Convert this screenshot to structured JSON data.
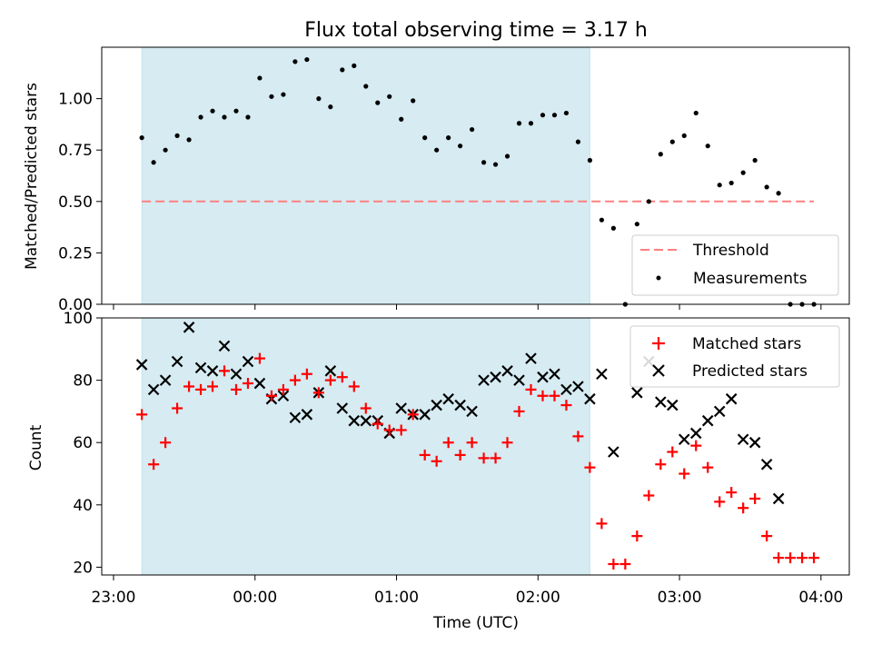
{
  "chart_data": [
    {
      "type": "scatter",
      "title": "Flux total observing time = 3.17 h",
      "ylabel": "Matched/Predicted stars",
      "xlim": [
        "22:55",
        "04:12"
      ],
      "ylim": [
        0,
        1.25
      ],
      "yticks": [
        0.0,
        0.25,
        0.5,
        0.75,
        1.0
      ],
      "ytick_labels": [
        "0.00",
        "0.25",
        "0.50",
        "0.75",
        "1.00"
      ],
      "shaded_interval": [
        "23:12",
        "02:22"
      ],
      "legend": {
        "position": "lower-right",
        "items": [
          "Threshold",
          "Measurements"
        ]
      },
      "series": [
        {
          "name": "Threshold",
          "kind": "dashed-line",
          "color": "#ff7f7f",
          "x": [
            "23:12",
            "03:57"
          ],
          "y": [
            0.5,
            0.5
          ]
        },
        {
          "name": "Measurements",
          "kind": "points",
          "color": "#000000",
          "x": [
            "23:12",
            "23:17",
            "23:22",
            "23:27",
            "23:32",
            "23:37",
            "23:42",
            "23:47",
            "23:52",
            "23:57",
            "00:02",
            "00:07",
            "00:12",
            "00:17",
            "00:22",
            "00:27",
            "00:32",
            "00:37",
            "00:42",
            "00:47",
            "00:52",
            "00:57",
            "01:02",
            "01:07",
            "01:12",
            "01:17",
            "01:22",
            "01:27",
            "01:32",
            "01:37",
            "01:42",
            "01:47",
            "01:52",
            "01:57",
            "02:02",
            "02:07",
            "02:12",
            "02:17",
            "02:22",
            "02:27",
            "02:32",
            "02:37",
            "02:42",
            "02:47",
            "02:52",
            "02:57",
            "03:02",
            "03:07",
            "03:12",
            "03:17",
            "03:22",
            "03:27",
            "03:32",
            "03:37",
            "03:42",
            "03:47",
            "03:52",
            "03:57"
          ],
          "y": [
            0.81,
            0.69,
            0.75,
            0.82,
            0.8,
            0.91,
            0.94,
            0.91,
            0.94,
            0.91,
            1.1,
            1.01,
            1.02,
            1.18,
            1.19,
            1.0,
            0.96,
            1.14,
            1.16,
            1.06,
            0.98,
            1.01,
            0.9,
            0.99,
            0.81,
            0.75,
            0.81,
            0.77,
            0.85,
            0.69,
            0.68,
            0.72,
            0.88,
            0.88,
            0.92,
            0.92,
            0.93,
            0.79,
            0.7,
            0.41,
            0.37,
            0.0,
            0.39,
            0.5,
            0.73,
            0.79,
            0.82,
            0.93,
            0.77,
            0.58,
            0.59,
            0.64,
            0.7,
            0.57,
            0.54,
            0.0,
            0.0,
            0.0
          ]
        }
      ]
    },
    {
      "type": "scatter",
      "xlabel": "Time (UTC)",
      "ylabel": "Count",
      "xlim": [
        "22:55",
        "04:12"
      ],
      "ylim": [
        17.5,
        100
      ],
      "yticks": [
        20,
        40,
        60,
        80,
        100
      ],
      "ytick_labels": [
        "20",
        "40",
        "60",
        "80",
        "100"
      ],
      "xticks": [
        "23:00",
        "00:00",
        "01:00",
        "02:00",
        "03:00",
        "04:00"
      ],
      "xtick_labels": [
        "23:00",
        "00:00",
        "01:00",
        "02:00",
        "03:00",
        "04:00"
      ],
      "shaded_interval": [
        "23:12",
        "02:22"
      ],
      "legend": {
        "position": "upper-right",
        "items": [
          "Matched stars",
          "Predicted stars"
        ]
      },
      "series": [
        {
          "name": "Matched stars",
          "marker": "plus",
          "color": "#ff0000",
          "x": [
            "23:12",
            "23:17",
            "23:22",
            "23:27",
            "23:32",
            "23:37",
            "23:42",
            "23:47",
            "23:52",
            "23:57",
            "00:02",
            "00:07",
            "00:12",
            "00:17",
            "00:22",
            "00:27",
            "00:32",
            "00:37",
            "00:42",
            "00:47",
            "00:52",
            "00:57",
            "01:02",
            "01:07",
            "01:12",
            "01:17",
            "01:22",
            "01:27",
            "01:32",
            "01:37",
            "01:42",
            "01:47",
            "01:52",
            "01:57",
            "02:02",
            "02:07",
            "02:12",
            "02:17",
            "02:22",
            "02:27",
            "02:32",
            "02:37",
            "02:42",
            "02:47",
            "02:52",
            "02:57",
            "03:02",
            "03:07",
            "03:12",
            "03:17",
            "03:22",
            "03:27",
            "03:32",
            "03:37",
            "03:42",
            "03:47",
            "03:52",
            "03:57"
          ],
          "y": [
            69,
            53,
            60,
            71,
            78,
            77,
            78,
            83,
            77,
            79,
            87,
            75,
            77,
            80,
            82,
            76,
            80,
            81,
            78,
            71,
            66,
            64,
            64,
            69,
            56,
            54,
            60,
            56,
            60,
            55,
            55,
            60,
            70,
            77,
            75,
            75,
            72,
            62,
            52,
            34,
            21,
            21,
            30,
            43,
            53,
            57,
            50,
            59,
            52,
            41,
            44,
            39,
            42,
            30,
            23,
            23,
            23,
            23
          ]
        },
        {
          "name": "Predicted stars",
          "marker": "x",
          "color": "#000000",
          "x": [
            "23:12",
            "23:17",
            "23:22",
            "23:27",
            "23:32",
            "23:37",
            "23:42",
            "23:47",
            "23:52",
            "23:57",
            "00:02",
            "00:07",
            "00:12",
            "00:17",
            "00:22",
            "00:27",
            "00:32",
            "00:37",
            "00:42",
            "00:47",
            "00:52",
            "00:57",
            "01:02",
            "01:07",
            "01:12",
            "01:17",
            "01:22",
            "01:27",
            "01:32",
            "01:37",
            "01:42",
            "01:47",
            "01:52",
            "01:57",
            "02:02",
            "02:07",
            "02:12",
            "02:17",
            "02:22",
            "02:27",
            "02:32",
            "02:37",
            "02:42",
            "02:47",
            "02:52",
            "02:57",
            "03:02",
            "03:07",
            "03:12",
            "03:17",
            "03:22",
            "03:27",
            "03:32",
            "03:37",
            "03:42"
          ],
          "y": [
            85,
            77,
            80,
            86,
            97,
            84,
            83,
            91,
            82,
            86,
            79,
            74,
            75,
            68,
            69,
            76,
            83,
            71,
            67,
            67,
            67,
            63,
            71,
            69,
            69,
            72,
            74,
            72,
            70,
            80,
            81,
            83,
            80,
            87,
            81,
            82,
            77,
            78,
            74,
            82,
            57,
            null,
            76,
            86,
            73,
            72,
            61,
            63,
            67,
            70,
            74,
            61,
            60,
            53,
            42
          ]
        }
      ]
    }
  ]
}
